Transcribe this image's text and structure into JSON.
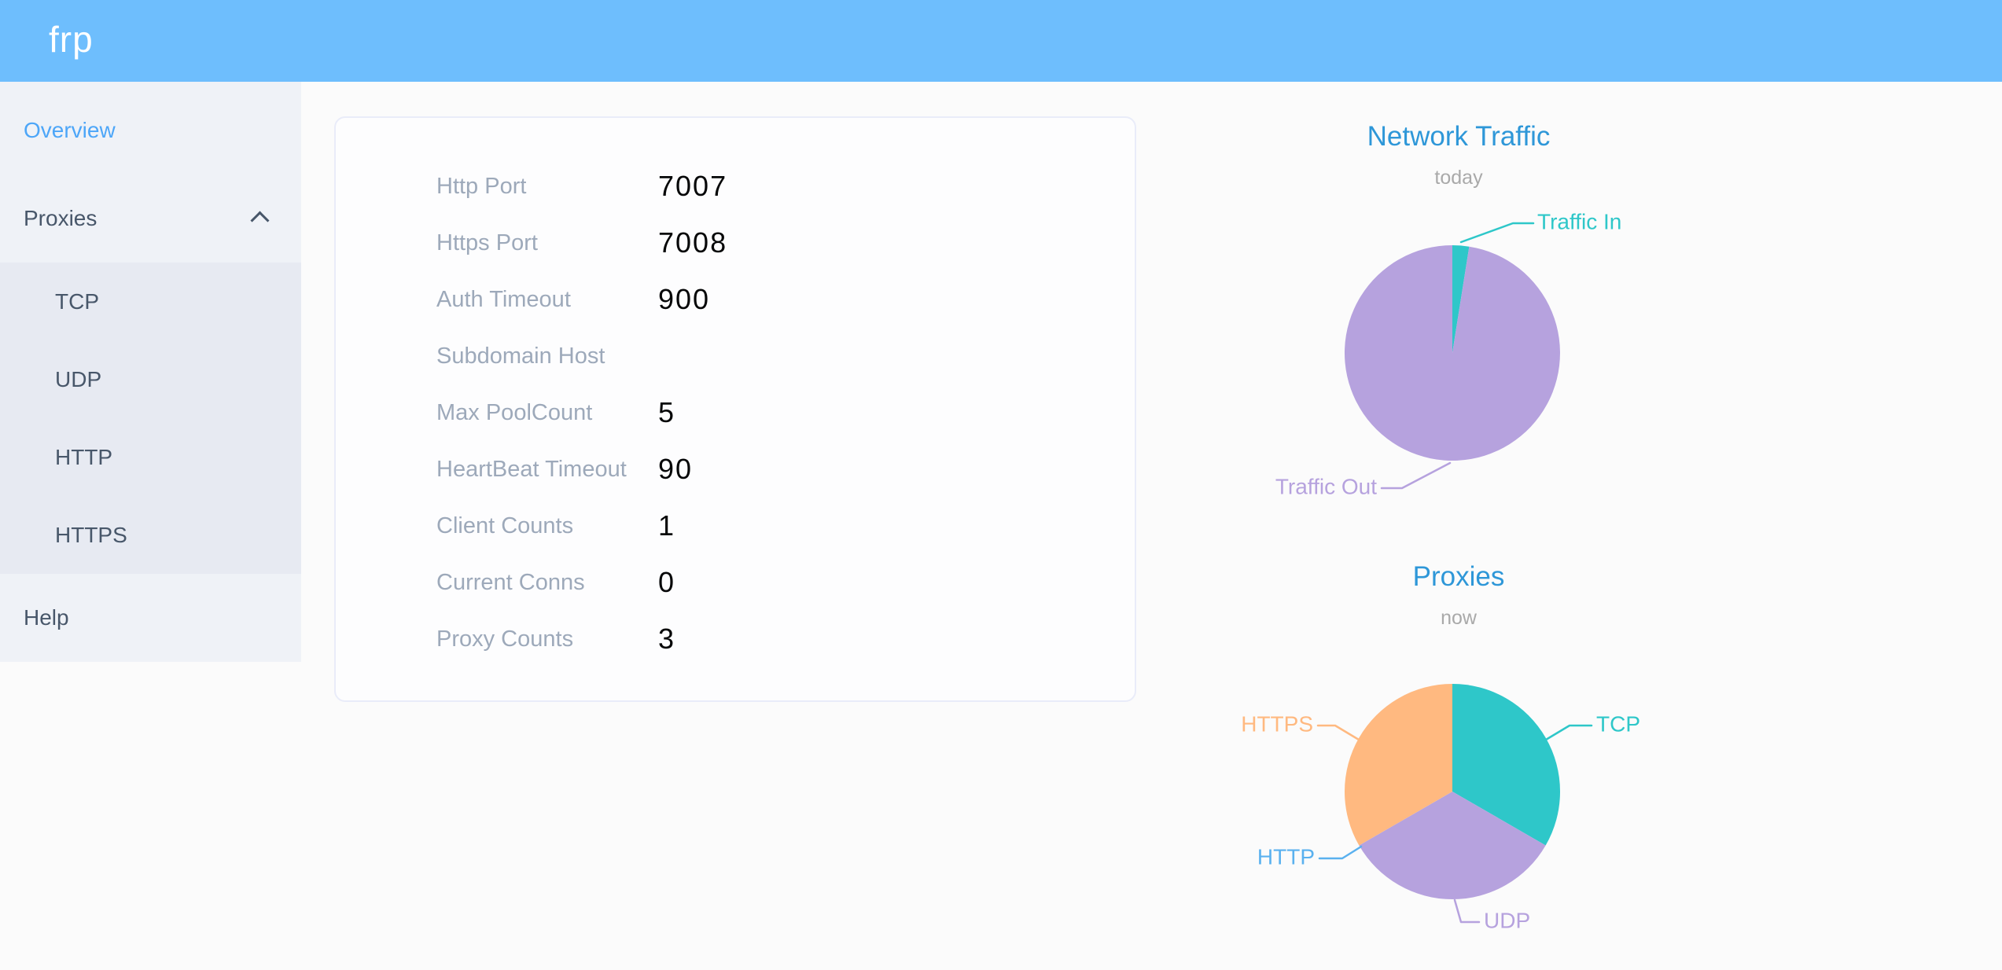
{
  "header": {
    "logo_text": "frp"
  },
  "sidebar": {
    "items": [
      {
        "label": "Overview",
        "active": true
      },
      {
        "label": "Proxies",
        "active": false,
        "expanded": true
      },
      {
        "label": "Help",
        "active": false
      }
    ],
    "proxy_types": [
      "TCP",
      "UDP",
      "HTTP",
      "HTTPS"
    ]
  },
  "server_info": {
    "rows": [
      {
        "label": "Http Port",
        "value": "7007"
      },
      {
        "label": "Https Port",
        "value": "7008"
      },
      {
        "label": "Auth Timeout",
        "value": "900"
      },
      {
        "label": "Subdomain Host",
        "value": ""
      },
      {
        "label": "Max PoolCount",
        "value": "5"
      },
      {
        "label": "HeartBeat Timeout",
        "value": "90"
      },
      {
        "label": "Client Counts",
        "value": "1"
      },
      {
        "label": "Current Conns",
        "value": "0"
      },
      {
        "label": "Proxy Counts",
        "value": "3"
      }
    ]
  },
  "chart_data": [
    {
      "type": "pie",
      "title": "Network Traffic",
      "subtitle": "today",
      "value_format": "percent",
      "legend_position": "none",
      "labels": "outside-with-leader-lines",
      "series": [
        {
          "name": "Traffic In",
          "value": 2.5,
          "color": "#2EC7C9"
        },
        {
          "name": "Traffic Out",
          "value": 97.5,
          "color": "#B6A2DE"
        }
      ]
    },
    {
      "type": "pie",
      "title": "Proxies",
      "subtitle": "now",
      "value_format": "count",
      "legend_position": "none",
      "labels": "outside-with-leader-lines",
      "series": [
        {
          "name": "TCP",
          "value": 1,
          "color": "#2EC7C9"
        },
        {
          "name": "UDP",
          "value": 1,
          "color": "#B6A2DE"
        },
        {
          "name": "HTTP",
          "value": 0,
          "color": "#5AB1EF"
        },
        {
          "name": "HTTPS",
          "value": 1,
          "color": "#FFB980"
        }
      ]
    }
  ],
  "colors": {
    "header_bg": "#6EBEFD",
    "logo_text": "#FFFFFF",
    "sidebar_bg": "#EFF2F7",
    "submenu_bg": "#E7EAF2",
    "sidebar_text": "#48576A",
    "sidebar_active_text": "#4DA6F8",
    "page_bg": "#FBFBFB",
    "card_bg": "#FDFDFE",
    "card_border": "#E9ECF9",
    "info_label_gray": "#9DA9BA",
    "info_value_black": "#060708",
    "chart_title_blue": "#2E97D8",
    "chart_subtitle_gray": "#A9A9A9",
    "pie_teal": "#2EC7C9",
    "pie_purple": "#B6A2DE",
    "pie_blue": "#5AB1EF",
    "pie_orange": "#FFB980"
  }
}
